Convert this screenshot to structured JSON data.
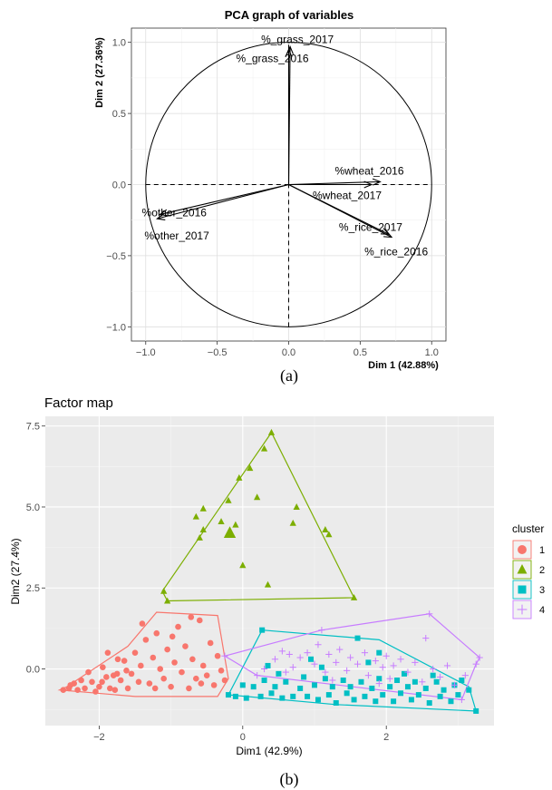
{
  "chart_data": [
    {
      "type": "scatter",
      "title": "PCA graph of variables",
      "xlabel": "Dim 1 (42.88%)",
      "ylabel": "Dim 2 (27.36%)",
      "xlim": [
        -1.1,
        1.1
      ],
      "ylim": [
        -1.1,
        1.1
      ],
      "xticks": [
        -1.0,
        -0.5,
        0.0,
        0.5,
        1.0
      ],
      "yticks": [
        -1.0,
        -0.5,
        0.0,
        0.5,
        1.0
      ],
      "xtick_labels": [
        "−1.0",
        "−0.5",
        "0.0",
        "0.5",
        "1.0"
      ],
      "ytick_labels": [
        "−1.0",
        "−0.5",
        "0.0",
        "0.5",
        "1.0"
      ],
      "grid": true,
      "variables": [
        {
          "name": "%_grass_2017",
          "x": 0.01,
          "y": 0.97
        },
        {
          "name": "%_grass_2016",
          "x": 0.0,
          "y": 0.95
        },
        {
          "name": "%wheat_2016",
          "x": 0.64,
          "y": 0.02
        },
        {
          "name": "%wheat_2017",
          "x": 0.58,
          "y": 0.0
        },
        {
          "name": "%_rice_2017",
          "x": 0.7,
          "y": -0.35
        },
        {
          "name": "%_rice_2016",
          "x": 0.72,
          "y": -0.37
        },
        {
          "name": "%other_2016",
          "x": -0.9,
          "y": -0.21
        },
        {
          "name": "%other_2017",
          "x": -0.92,
          "y": -0.24
        }
      ],
      "caption": "(a)"
    },
    {
      "type": "scatter",
      "title": "Factor map",
      "xlabel": "Dim1 (42.9%)",
      "ylabel": "Dim2 (27.4%)",
      "xlim": [
        -2.75,
        3.5
      ],
      "ylim": [
        -1.75,
        7.8
      ],
      "xticks": [
        -2,
        0,
        2
      ],
      "yticks": [
        0.0,
        2.5,
        5.0,
        7.5
      ],
      "xtick_labels": [
        "−2",
        "0",
        "2"
      ],
      "ytick_labels": [
        "0.0",
        "2.5",
        "5.0",
        "7.5"
      ],
      "legend_title": "cluster",
      "legend_position": "right",
      "series": [
        {
          "name": "1",
          "color": "#F8766D",
          "marker": "circle",
          "hull": [
            [
              -2.55,
              -0.65
            ],
            [
              -2.45,
              -0.55
            ],
            [
              -1.6,
              0.7
            ],
            [
              -1.2,
              1.75
            ],
            [
              -0.35,
              1.65
            ],
            [
              -0.2,
              -0.3
            ],
            [
              -0.35,
              -0.85
            ],
            [
              -1.5,
              -0.85
            ],
            [
              -2.55,
              -0.65
            ]
          ],
          "points": [
            [
              -2.5,
              -0.65
            ],
            [
              -2.42,
              -0.6
            ],
            [
              -2.35,
              -0.45
            ],
            [
              -2.3,
              -0.65
            ],
            [
              -2.25,
              -0.35
            ],
            [
              -2.2,
              -0.6
            ],
            [
              -2.1,
              -0.4
            ],
            [
              -2.05,
              -0.7
            ],
            [
              -2.0,
              -0.55
            ],
            [
              -1.95,
              0.05
            ],
            [
              -1.9,
              -0.25
            ],
            [
              -1.85,
              -0.6
            ],
            [
              -1.8,
              -0.2
            ],
            [
              -1.78,
              -0.65
            ],
            [
              -1.75,
              -0.15
            ],
            [
              -1.7,
              -0.35
            ],
            [
              -1.65,
              0.25
            ],
            [
              -1.6,
              -0.6
            ],
            [
              -1.55,
              -0.15
            ],
            [
              -1.5,
              0.5
            ],
            [
              -1.45,
              -0.4
            ],
            [
              -1.42,
              0.1
            ],
            [
              -1.35,
              0.9
            ],
            [
              -1.3,
              -0.45
            ],
            [
              -1.25,
              0.35
            ],
            [
              -1.2,
              1.1
            ],
            [
              -1.15,
              0.0
            ],
            [
              -1.1,
              -0.3
            ],
            [
              -1.05,
              0.6
            ],
            [
              -1.0,
              -0.55
            ],
            [
              -0.95,
              0.2
            ],
            [
              -0.9,
              1.3
            ],
            [
              -0.85,
              -0.1
            ],
            [
              -0.8,
              0.7
            ],
            [
              -0.75,
              -0.6
            ],
            [
              -0.7,
              0.3
            ],
            [
              -0.65,
              -0.3
            ],
            [
              -0.6,
              1.5
            ],
            [
              -0.55,
              0.1
            ],
            [
              -0.5,
              -0.2
            ],
            [
              -0.45,
              0.8
            ],
            [
              -0.4,
              -0.5
            ],
            [
              -0.35,
              0.4
            ],
            [
              -0.3,
              -0.05
            ],
            [
              -0.25,
              -0.35
            ],
            [
              -2.15,
              -0.1
            ],
            [
              -1.88,
              0.5
            ],
            [
              -1.62,
              -0.05
            ],
            [
              -1.4,
              1.4
            ],
            [
              -0.98,
              1.0
            ],
            [
              -0.72,
              1.6
            ],
            [
              -1.74,
              0.3
            ],
            [
              -1.96,
              -0.4
            ],
            [
              -2.4,
              -0.5
            ],
            [
              -1.22,
              -0.6
            ],
            [
              -0.58,
              -0.45
            ]
          ]
        },
        {
          "name": "2",
          "color": "#7CAE00",
          "marker": "triangle",
          "hull": [
            [
              -1.12,
              2.4
            ],
            [
              -1.05,
              2.1
            ],
            [
              1.55,
              2.2
            ],
            [
              0.4,
              7.3
            ],
            [
              -1.12,
              2.4
            ]
          ],
          "points": [
            [
              0.4,
              7.3
            ],
            [
              0.3,
              6.8
            ],
            [
              0.1,
              6.2
            ],
            [
              -0.05,
              5.9
            ],
            [
              -0.2,
              5.2
            ],
            [
              0.2,
              5.3
            ],
            [
              -0.55,
              4.95
            ],
            [
              -0.65,
              4.7
            ],
            [
              -0.3,
              4.55
            ],
            [
              -0.1,
              4.45
            ],
            [
              -0.55,
              4.3
            ],
            [
              -0.6,
              4.05
            ],
            [
              -0.2,
              4.2
            ],
            [
              -0.18,
              4.2
            ],
            [
              0.75,
              5.0
            ],
            [
              0.7,
              4.5
            ],
            [
              1.15,
              4.3
            ],
            [
              1.2,
              4.15
            ],
            [
              0.0,
              3.2
            ],
            [
              0.35,
              2.6
            ],
            [
              -1.1,
              2.4
            ],
            [
              -1.05,
              2.1
            ],
            [
              1.55,
              2.2
            ]
          ]
        },
        {
          "name": "3",
          "color": "#00BFC4",
          "marker": "square",
          "hull": [
            [
              0.27,
              1.2
            ],
            [
              1.9,
              0.9
            ],
            [
              3.15,
              -0.55
            ],
            [
              3.25,
              -1.3
            ],
            [
              1.3,
              -1.1
            ],
            [
              -0.2,
              -0.8
            ],
            [
              0.27,
              1.2
            ]
          ],
          "points": [
            [
              0.27,
              1.2
            ],
            [
              1.6,
              0.95
            ],
            [
              1.9,
              0.5
            ],
            [
              -0.2,
              -0.8
            ],
            [
              -0.1,
              -0.85
            ],
            [
              0.0,
              -0.5
            ],
            [
              0.05,
              -0.9
            ],
            [
              0.15,
              -0.55
            ],
            [
              0.25,
              -0.85
            ],
            [
              0.3,
              -0.35
            ],
            [
              0.4,
              -0.75
            ],
            [
              0.45,
              -0.55
            ],
            [
              0.55,
              -0.9
            ],
            [
              0.6,
              -0.4
            ],
            [
              0.7,
              -0.85
            ],
            [
              0.8,
              -0.6
            ],
            [
              0.85,
              -0.25
            ],
            [
              0.9,
              -0.85
            ],
            [
              1.0,
              -0.5
            ],
            [
              1.05,
              -0.95
            ],
            [
              1.15,
              -0.3
            ],
            [
              1.2,
              -0.8
            ],
            [
              1.25,
              -0.55
            ],
            [
              1.3,
              -1.05
            ],
            [
              1.4,
              -0.35
            ],
            [
              1.45,
              -0.75
            ],
            [
              1.5,
              -0.55
            ],
            [
              1.55,
              -0.95
            ],
            [
              1.65,
              -0.4
            ],
            [
              1.7,
              -0.85
            ],
            [
              1.8,
              -0.6
            ],
            [
              1.85,
              -1.0
            ],
            [
              1.9,
              -0.3
            ],
            [
              1.95,
              -0.8
            ],
            [
              2.05,
              -0.55
            ],
            [
              2.1,
              -1.0
            ],
            [
              2.15,
              -0.35
            ],
            [
              2.2,
              -0.75
            ],
            [
              2.3,
              -0.55
            ],
            [
              2.35,
              -0.95
            ],
            [
              2.4,
              -0.4
            ],
            [
              2.45,
              -0.8
            ],
            [
              2.55,
              -0.6
            ],
            [
              2.6,
              -1.05
            ],
            [
              2.7,
              -0.4
            ],
            [
              2.75,
              -0.85
            ],
            [
              2.8,
              -0.65
            ],
            [
              2.9,
              -1.0
            ],
            [
              2.95,
              -0.5
            ],
            [
              3.0,
              -0.8
            ],
            [
              3.05,
              -0.35
            ],
            [
              3.15,
              -0.65
            ],
            [
              3.25,
              -1.3
            ],
            [
              0.5,
              -0.15
            ],
            [
              1.1,
              0.05
            ],
            [
              1.75,
              0.2
            ],
            [
              2.25,
              -0.15
            ],
            [
              0.95,
              0.3
            ],
            [
              0.35,
              0.1
            ],
            [
              2.65,
              -0.2
            ]
          ]
        },
        {
          "name": "4",
          "color": "#C77CFF",
          "marker": "plus",
          "hull": [
            [
              -0.25,
              0.4
            ],
            [
              0.2,
              -0.2
            ],
            [
              3.05,
              -0.95
            ],
            [
              3.25,
              0.15
            ],
            [
              3.3,
              0.35
            ],
            [
              2.6,
              1.7
            ],
            [
              1.1,
              1.2
            ],
            [
              -0.25,
              0.4
            ]
          ],
          "points": [
            [
              -0.25,
              0.4
            ],
            [
              2.6,
              1.7
            ],
            [
              1.1,
              1.2
            ],
            [
              3.3,
              0.35
            ],
            [
              3.25,
              0.15
            ],
            [
              3.05,
              -0.95
            ],
            [
              2.55,
              0.95
            ],
            [
              0.45,
              0.3
            ],
            [
              0.55,
              0.55
            ],
            [
              0.65,
              0.45
            ],
            [
              0.7,
              0.05
            ],
            [
              0.8,
              0.35
            ],
            [
              0.9,
              0.5
            ],
            [
              1.0,
              0.15
            ],
            [
              1.05,
              0.75
            ],
            [
              1.15,
              -0.1
            ],
            [
              1.2,
              0.45
            ],
            [
              1.3,
              0.2
            ],
            [
              1.35,
              0.6
            ],
            [
              1.45,
              -0.05
            ],
            [
              1.5,
              0.35
            ],
            [
              1.6,
              0.15
            ],
            [
              1.7,
              0.5
            ],
            [
              1.75,
              -0.2
            ],
            [
              1.85,
              0.25
            ],
            [
              1.95,
              0.05
            ],
            [
              2.0,
              0.4
            ],
            [
              2.05,
              -0.3
            ],
            [
              2.1,
              0.1
            ],
            [
              2.2,
              0.3
            ],
            [
              2.3,
              -0.1
            ],
            [
              2.4,
              0.2
            ],
            [
              2.5,
              -0.4
            ],
            [
              2.65,
              0.0
            ],
            [
              2.75,
              -0.25
            ],
            [
              2.85,
              0.1
            ],
            [
              2.95,
              -0.5
            ],
            [
              3.1,
              -0.2
            ],
            [
              0.2,
              -0.2
            ],
            [
              0.3,
              0.0
            ],
            [
              0.6,
              -0.1
            ],
            [
              1.25,
              -0.35
            ],
            [
              1.9,
              -0.45
            ]
          ]
        }
      ],
      "caption": "(b)"
    }
  ]
}
